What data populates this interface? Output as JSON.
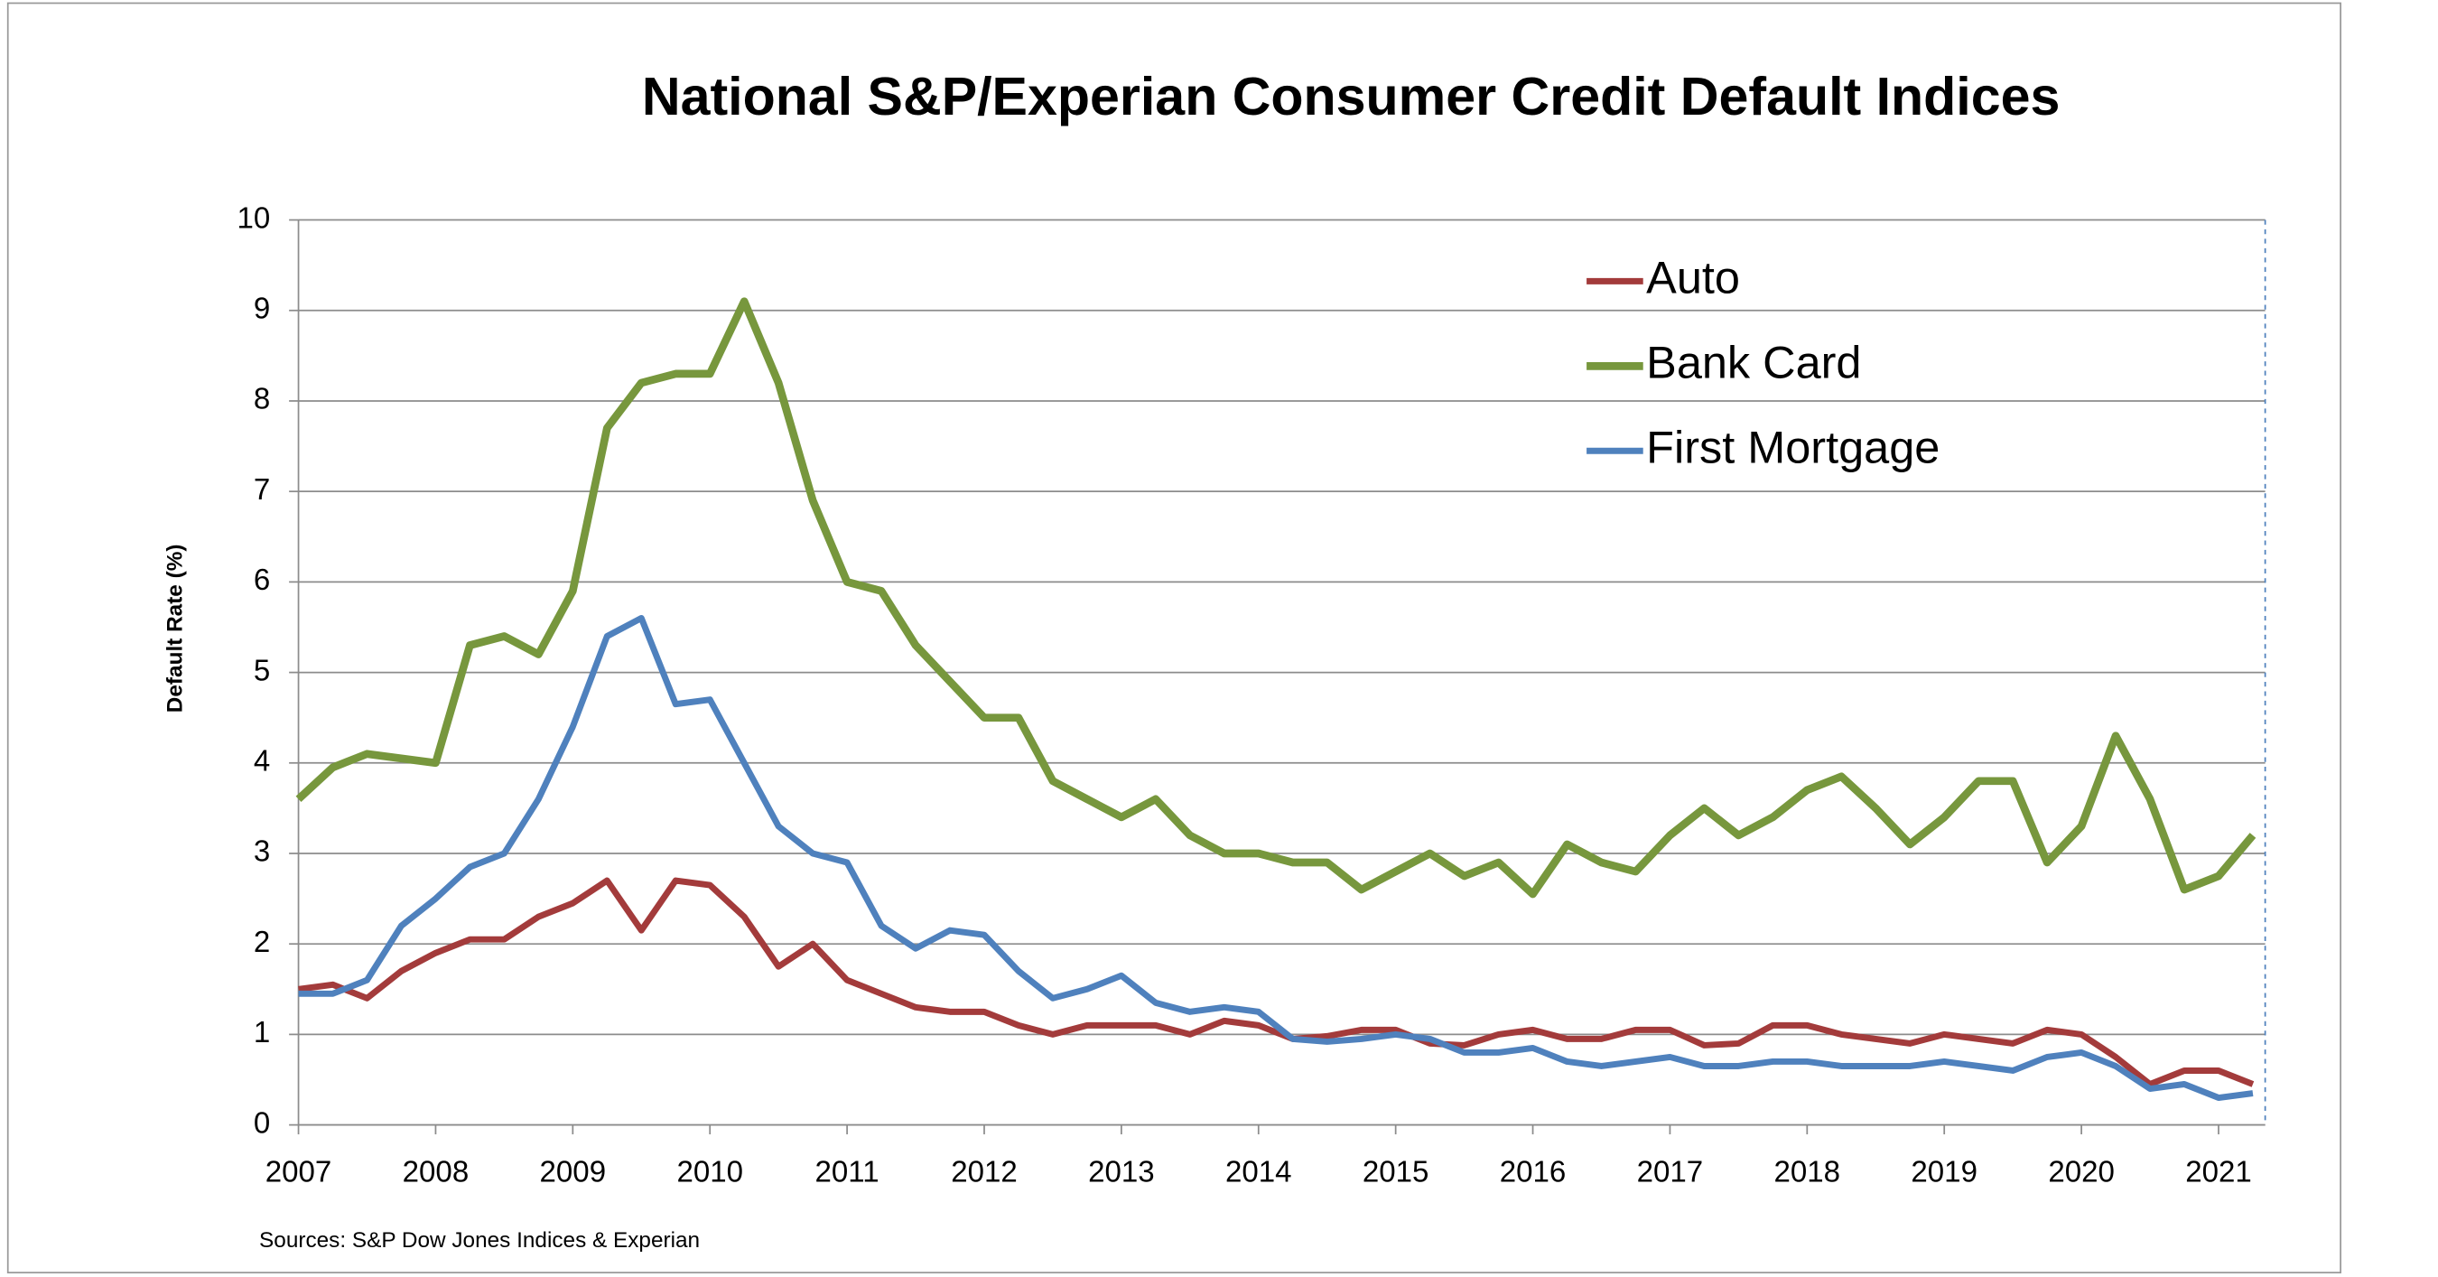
{
  "chart_data": {
    "type": "line",
    "title": "National S&P/Experian Consumer Credit Default Indices",
    "y_label": "Default Rate (%)",
    "source": "Sources: S&P Dow Jones Indices & Experian",
    "x": [
      2007,
      2007.25,
      2007.5,
      2007.75,
      2008,
      2008.25,
      2008.5,
      2008.75,
      2009,
      2009.25,
      2009.5,
      2009.75,
      2010,
      2010.25,
      2010.5,
      2010.75,
      2011,
      2011.25,
      2011.5,
      2011.75,
      2012,
      2012.25,
      2012.5,
      2012.75,
      2013,
      2013.25,
      2013.5,
      2013.75,
      2014,
      2014.25,
      2014.5,
      2014.75,
      2015,
      2015.25,
      2015.5,
      2015.75,
      2016,
      2016.25,
      2016.5,
      2016.75,
      2017,
      2017.25,
      2017.5,
      2017.75,
      2018,
      2018.25,
      2018.5,
      2018.75,
      2019,
      2019.25,
      2019.5,
      2019.75,
      2020,
      2020.25,
      2020.5,
      2020.75,
      2021,
      2021.25
    ],
    "series": [
      {
        "name": "Auto",
        "color": "#a33b3b",
        "values": [
          1.5,
          1.55,
          1.4,
          1.7,
          1.9,
          2.05,
          2.05,
          2.3,
          2.45,
          2.7,
          2.15,
          2.7,
          2.65,
          2.3,
          1.75,
          2.0,
          1.6,
          1.45,
          1.3,
          1.25,
          1.25,
          1.1,
          1.0,
          1.1,
          1.1,
          1.1,
          1.0,
          1.15,
          1.1,
          0.95,
          0.98,
          1.05,
          1.05,
          0.9,
          0.88,
          1.0,
          1.05,
          0.95,
          0.95,
          1.05,
          1.05,
          0.88,
          0.9,
          1.1,
          1.1,
          1.0,
          0.95,
          0.9,
          1.0,
          0.95,
          0.9,
          1.05,
          1.0,
          0.75,
          0.45,
          0.6,
          0.6,
          0.45
        ]
      },
      {
        "name": "Bank Card",
        "color": "#77973d",
        "values": [
          3.6,
          3.95,
          4.1,
          4.05,
          4.0,
          5.3,
          5.4,
          5.2,
          5.9,
          7.7,
          8.2,
          8.3,
          8.3,
          9.1,
          8.2,
          6.9,
          6.0,
          5.9,
          5.3,
          4.9,
          4.5,
          4.5,
          3.8,
          3.6,
          3.4,
          3.6,
          3.2,
          3.0,
          3.0,
          2.9,
          2.9,
          2.6,
          2.8,
          3.0,
          2.75,
          2.9,
          2.55,
          3.1,
          2.9,
          2.8,
          3.2,
          3.5,
          3.2,
          3.4,
          3.7,
          3.85,
          3.5,
          3.1,
          3.4,
          3.8,
          3.8,
          2.9,
          3.3,
          4.3,
          3.6,
          2.6,
          2.75,
          3.2
        ]
      },
      {
        "name": "First Mortgage",
        "color": "#4f81bd",
        "values": [
          1.45,
          1.45,
          1.6,
          2.2,
          2.5,
          2.85,
          3.0,
          3.6,
          4.4,
          5.4,
          5.6,
          4.65,
          4.7,
          4.0,
          3.3,
          3.0,
          2.9,
          2.2,
          1.95,
          2.15,
          2.1,
          1.7,
          1.4,
          1.5,
          1.65,
          1.35,
          1.25,
          1.3,
          1.25,
          0.95,
          0.92,
          0.95,
          1.0,
          0.95,
          0.8,
          0.8,
          0.85,
          0.7,
          0.65,
          0.7,
          0.75,
          0.65,
          0.65,
          0.7,
          0.7,
          0.65,
          0.65,
          0.65,
          0.7,
          0.65,
          0.6,
          0.75,
          0.8,
          0.65,
          0.4,
          0.45,
          0.3,
          0.35
        ]
      }
    ],
    "xlim": [
      2007,
      2021.34
    ],
    "xticks": [
      2007,
      2008,
      2009,
      2010,
      2011,
      2012,
      2013,
      2014,
      2015,
      2016,
      2017,
      2018,
      2019,
      2020,
      2021
    ],
    "ylim": [
      0,
      10
    ],
    "yticks": [
      0,
      1,
      2,
      3,
      4,
      5,
      6,
      7,
      8,
      9,
      10
    ],
    "grid": true
  }
}
